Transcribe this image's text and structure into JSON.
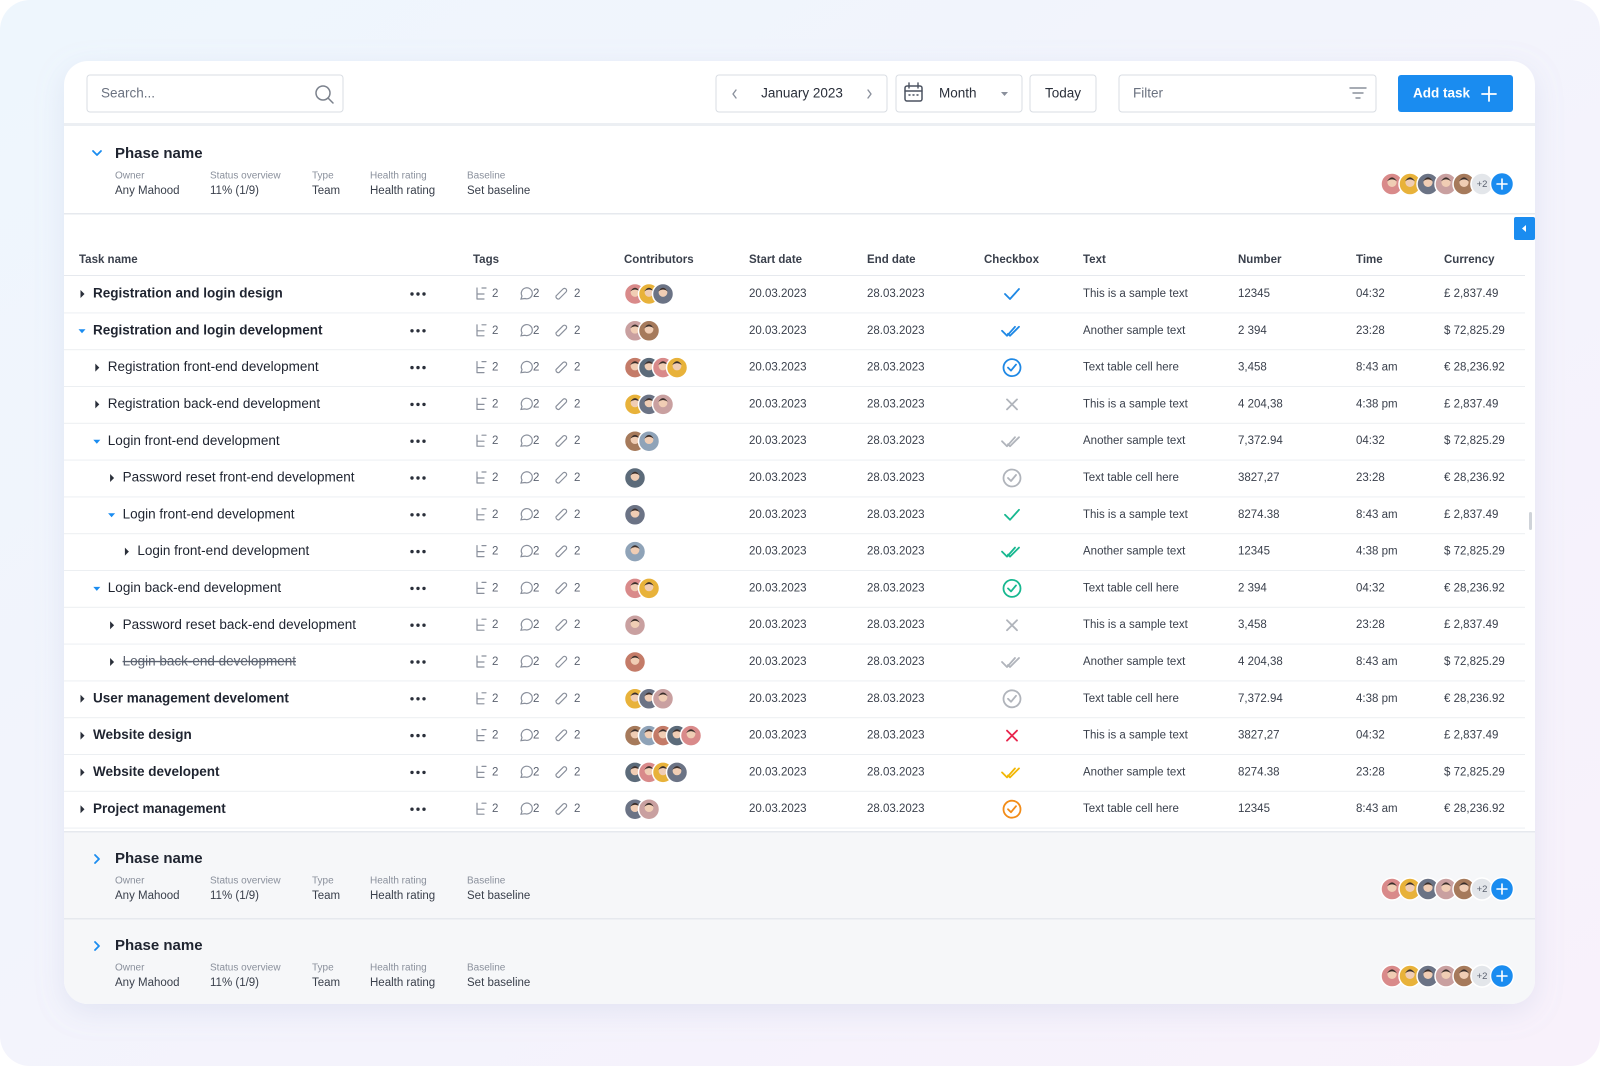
{
  "toolbar": {
    "search_placeholder": "Search...",
    "period": "January 2023",
    "view": "Month",
    "today": "Today",
    "filter": "Filter",
    "add_task": "Add task"
  },
  "phases": [
    {
      "name": "Phase name",
      "expanded": true,
      "fields": [
        {
          "label": "Owner",
          "value": "Any Mahood"
        },
        {
          "label": "Status overview",
          "value": "11% (1/9)"
        },
        {
          "label": "Type",
          "value": "Team"
        },
        {
          "label": "Health rating",
          "value": "Health rating"
        },
        {
          "label": "Baseline",
          "value": "Set baseline"
        }
      ],
      "more_contributors": "+2"
    },
    {
      "name": "Phase name",
      "expanded": false,
      "fields": [
        {
          "label": "Owner",
          "value": "Any Mahood"
        },
        {
          "label": "Status overview",
          "value": "11% (1/9)"
        },
        {
          "label": "Type",
          "value": "Team"
        },
        {
          "label": "Health rating",
          "value": "Health rating"
        },
        {
          "label": "Baseline",
          "value": "Set baseline"
        }
      ],
      "more_contributors": "+2"
    },
    {
      "name": "Phase name",
      "expanded": false,
      "fields": [
        {
          "label": "Owner",
          "value": "Any Mahood"
        },
        {
          "label": "Status overview",
          "value": "11% (1/9)"
        },
        {
          "label": "Type",
          "value": "Team"
        },
        {
          "label": "Health rating",
          "value": "Health rating"
        },
        {
          "label": "Baseline",
          "value": "Set baseline"
        }
      ],
      "more_contributors": "+2"
    }
  ],
  "table": {
    "columns": [
      "Task name",
      "Tags",
      "Contributors",
      "Start date",
      "End date",
      "Checkbox",
      "Text",
      "Number",
      "Time",
      "Currency"
    ],
    "rows": [
      {
        "name": "Registration and login design",
        "level": 0,
        "expanded": false,
        "done": false,
        "subtasks": 2,
        "comments": 2,
        "attachments": 2,
        "contributors": 3,
        "start": "20.03.2023",
        "end": "28.03.2023",
        "checkbox": {
          "icon": "check",
          "color": "#1e88e5"
        },
        "text": "This is a sample text",
        "number": "12345",
        "time": "04:32",
        "currency": "£ 2,837.49"
      },
      {
        "name": "Registration and login development",
        "level": 0,
        "expanded": true,
        "done": false,
        "subtasks": 2,
        "comments": 2,
        "attachments": 2,
        "contributors": 2,
        "start": "20.03.2023",
        "end": "28.03.2023",
        "checkbox": {
          "icon": "double",
          "color": "#1e88e5"
        },
        "text": "Another sample text",
        "number": "2 394",
        "time": "23:28",
        "currency": "$ 72,825.29"
      },
      {
        "name": "Registration front-end development",
        "level": 1,
        "expanded": false,
        "done": false,
        "subtasks": 2,
        "comments": 2,
        "attachments": 2,
        "contributors": 4,
        "start": "20.03.2023",
        "end": "28.03.2023",
        "checkbox": {
          "icon": "circle",
          "color": "#1e88e5"
        },
        "text": "Text table cell here",
        "number": "3,458",
        "time": "8:43 am",
        "currency": "€ 28,236.92"
      },
      {
        "name": "Registration back-end development",
        "level": 1,
        "expanded": false,
        "done": false,
        "subtasks": 2,
        "comments": 2,
        "attachments": 2,
        "contributors": 3,
        "start": "20.03.2023",
        "end": "28.03.2023",
        "checkbox": {
          "icon": "x",
          "color": "#b0b4bb"
        },
        "text": "This is a sample text",
        "number": "4 204,38",
        "time": "4:38 pm",
        "currency": "£ 2,837.49"
      },
      {
        "name": "Login front-end development",
        "level": 1,
        "expanded": true,
        "done": false,
        "subtasks": 2,
        "comments": 2,
        "attachments": 2,
        "contributors": 2,
        "start": "20.03.2023",
        "end": "28.03.2023",
        "checkbox": {
          "icon": "double",
          "color": "#b0b4bb"
        },
        "text": "Another sample text",
        "number": "7,372.94",
        "time": "04:32",
        "currency": "$ 72,825.29"
      },
      {
        "name": "Password reset front-end development",
        "level": 2,
        "expanded": false,
        "done": false,
        "subtasks": 2,
        "comments": 2,
        "attachments": 2,
        "contributors": 1,
        "start": "20.03.2023",
        "end": "28.03.2023",
        "checkbox": {
          "icon": "circle",
          "color": "#b0b4bb"
        },
        "text": "Text table cell here",
        "number": "3827,27",
        "time": "23:28",
        "currency": "€ 28,236.92"
      },
      {
        "name": "Login front-end development",
        "level": 2,
        "expanded": true,
        "done": false,
        "subtasks": 2,
        "comments": 2,
        "attachments": 2,
        "contributors": 1,
        "start": "20.03.2023",
        "end": "28.03.2023",
        "checkbox": {
          "icon": "check",
          "color": "#17b890"
        },
        "text": "This is a sample text",
        "number": "8274.38",
        "time": "8:43 am",
        "currency": "£ 2,837.49"
      },
      {
        "name": "Login front-end development",
        "level": 3,
        "expanded": false,
        "done": false,
        "subtasks": 2,
        "comments": 2,
        "attachments": 2,
        "contributors": 1,
        "start": "20.03.2023",
        "end": "28.03.2023",
        "checkbox": {
          "icon": "double",
          "color": "#17b890"
        },
        "text": "Another sample text",
        "number": "12345",
        "time": "4:38 pm",
        "currency": "$ 72,825.29"
      },
      {
        "name": "Login back-end development",
        "level": 1,
        "expanded": true,
        "done": false,
        "subtasks": 2,
        "comments": 2,
        "attachments": 2,
        "contributors": 2,
        "start": "20.03.2023",
        "end": "28.03.2023",
        "checkbox": {
          "icon": "circle",
          "color": "#17b890"
        },
        "text": "Text table cell here",
        "number": "2 394",
        "time": "04:32",
        "currency": "€ 28,236.92"
      },
      {
        "name": "Password reset back-end development",
        "level": 2,
        "expanded": false,
        "done": false,
        "subtasks": 2,
        "comments": 2,
        "attachments": 2,
        "contributors": 1,
        "start": "20.03.2023",
        "end": "28.03.2023",
        "checkbox": {
          "icon": "x",
          "color": "#b0b4bb"
        },
        "text": "This is a sample text",
        "number": "3,458",
        "time": "23:28",
        "currency": "£ 2,837.49"
      },
      {
        "name": "Login back-end development",
        "level": 2,
        "expanded": false,
        "done": true,
        "subtasks": 2,
        "comments": 2,
        "attachments": 2,
        "contributors": 1,
        "start": "20.03.2023",
        "end": "28.03.2023",
        "checkbox": {
          "icon": "double",
          "color": "#b0b4bb"
        },
        "text": "Another sample text",
        "number": "4 204,38",
        "time": "8:43 am",
        "currency": "$ 72,825.29"
      },
      {
        "name": "User management develoment",
        "level": 0,
        "expanded": false,
        "done": false,
        "subtasks": 2,
        "comments": 2,
        "attachments": 2,
        "contributors": 3,
        "start": "20.03.2023",
        "end": "28.03.2023",
        "checkbox": {
          "icon": "circle",
          "color": "#b0b4bb"
        },
        "text": "Text table cell here",
        "number": "7,372.94",
        "time": "4:38 pm",
        "currency": "€ 28,236.92"
      },
      {
        "name": "Website design",
        "level": 0,
        "expanded": false,
        "done": false,
        "subtasks": 2,
        "comments": 2,
        "attachments": 2,
        "contributors": 5,
        "start": "20.03.2023",
        "end": "28.03.2023",
        "checkbox": {
          "icon": "x",
          "color": "#e8234b"
        },
        "text": "This is a sample text",
        "number": "3827,27",
        "time": "04:32",
        "currency": "£ 2,837.49"
      },
      {
        "name": "Website developent",
        "level": 0,
        "expanded": false,
        "done": false,
        "subtasks": 2,
        "comments": 2,
        "attachments": 2,
        "contributors": 4,
        "start": "20.03.2023",
        "end": "28.03.2023",
        "checkbox": {
          "icon": "double",
          "color": "#f2b705"
        },
        "text": "Another sample text",
        "number": "8274.38",
        "time": "23:28",
        "currency": "$ 72,825.29"
      },
      {
        "name": "Project management",
        "level": 0,
        "expanded": false,
        "done": false,
        "subtasks": 2,
        "comments": 2,
        "attachments": 2,
        "contributors": 2,
        "start": "20.03.2023",
        "end": "28.03.2023",
        "checkbox": {
          "icon": "circle",
          "color": "#f28c18"
        },
        "text": "Text table cell here",
        "number": "12345",
        "time": "8:43 am",
        "currency": "€ 28,236.92"
      }
    ]
  }
}
